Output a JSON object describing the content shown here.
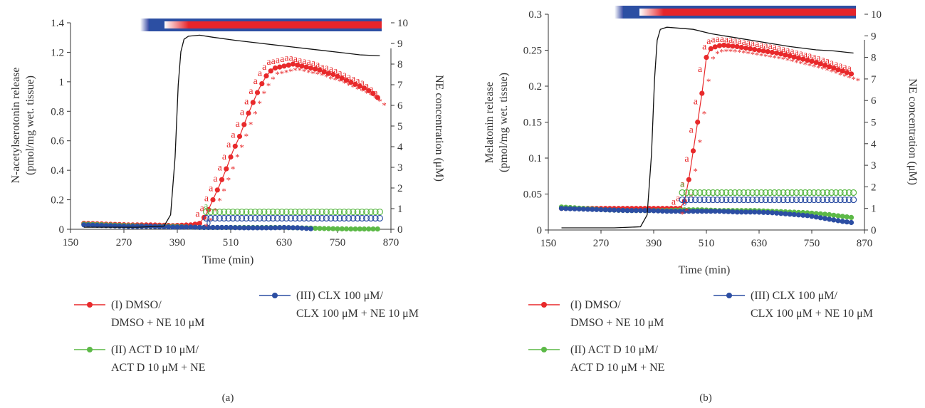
{
  "chart_data": [
    {
      "type": "line",
      "panel_label": "(a)",
      "xlabel": "Time (min)",
      "ylabel_lines": [
        "N-acetylserotonin release",
        "(pmol/mg wet. tissue)"
      ],
      "y2label": "NE concentration (μM)",
      "xlim": [
        150,
        870
      ],
      "xticks": [
        150,
        270,
        390,
        510,
        630,
        750,
        870
      ],
      "ylim": [
        0,
        1.4
      ],
      "yticks": [
        0,
        0.2,
        0.4,
        0.6,
        0.8,
        1,
        1.2,
        1.4
      ],
      "ytick_labels": [
        "0",
        "0.2",
        "0.4",
        "0.6",
        "0.8",
        "1",
        "1.2",
        "1.4"
      ],
      "y2lim": [
        0,
        10
      ],
      "y2ticks": [
        0,
        1,
        2,
        3,
        4,
        5,
        6,
        7,
        8,
        9,
        10
      ],
      "series": [
        {
          "name": "(I) DMSO/ DMSO + NE 10 μM",
          "color": "#e8292b",
          "x": [
            180,
            230,
            280,
            330,
            380,
            420,
            440,
            455,
            470,
            485,
            500,
            515,
            530,
            545,
            560,
            575,
            590,
            605,
            620,
            635,
            650,
            665,
            680,
            695,
            710,
            725,
            740,
            755,
            770,
            785,
            800,
            815,
            830,
            845
          ],
          "y": [
            0.04,
            0.035,
            0.03,
            0.03,
            0.025,
            0.03,
            0.04,
            0.1,
            0.2,
            0.3,
            0.41,
            0.53,
            0.63,
            0.75,
            0.86,
            0.96,
            1.04,
            1.09,
            1.1,
            1.11,
            1.12,
            1.11,
            1.1,
            1.09,
            1.08,
            1.06,
            1.05,
            1.03,
            1.01,
            0.99,
            0.97,
            0.95,
            0.92,
            0.88
          ]
        },
        {
          "name": "(II) ACT D 10 μM/ ACT D 10 μM + NE",
          "color": "#5cb947",
          "x": [
            180,
            230,
            280,
            330,
            380,
            420,
            450,
            480,
            510,
            540,
            570,
            600,
            630,
            660,
            690,
            720,
            750,
            780,
            810,
            845
          ],
          "y": [
            0.035,
            0.03,
            0.025,
            0.02,
            0.02,
            0.015,
            0.012,
            0.012,
            0.012,
            0.012,
            0.012,
            0.012,
            0.012,
            0.01,
            0.008,
            0.005,
            0.003,
            0.002,
            0.002,
            0.002
          ]
        },
        {
          "name": "(III) CLX 100 μM/ CLX 100 μM + NE 10 μM",
          "color": "#2c4ea3",
          "x": [
            180,
            230,
            280,
            330,
            380,
            420,
            450,
            480,
            510,
            540,
            570,
            600,
            630,
            660,
            690
          ],
          "y": [
            0.03,
            0.025,
            0.02,
            0.02,
            0.015,
            0.015,
            0.012,
            0.012,
            0.012,
            0.01,
            0.01,
            0.01,
            0.012,
            0.01,
            0.004
          ]
        },
        {
          "name": "NE concentration",
          "color": "#111111",
          "axis": "right",
          "x": [
            180,
            300,
            360,
            375,
            385,
            392,
            398,
            405,
            415,
            440,
            470,
            520,
            580,
            640,
            700,
            760,
            800,
            845
          ],
          "y": [
            0.1,
            0.1,
            0.15,
            0.7,
            3.5,
            7,
            8.6,
            9.2,
            9.35,
            9.4,
            9.3,
            9.15,
            9,
            8.85,
            8.7,
            8.55,
            8.45,
            8.4
          ]
        }
      ],
      "annotations": {
        "symbols": [
          "a",
          "*",
          "b"
        ]
      }
    },
    {
      "type": "line",
      "panel_label": "(b)",
      "xlabel": "Time (min)",
      "ylabel_lines": [
        "Melatonin release",
        "(pmol/mg wet. tissue)"
      ],
      "y2label": "NE concentration (μM)",
      "xlim": [
        150,
        870
      ],
      "xticks": [
        150,
        270,
        390,
        510,
        630,
        750,
        870
      ],
      "ylim": [
        0,
        0.3
      ],
      "yticks": [
        0,
        0.05,
        0.1,
        0.15,
        0.2,
        0.25,
        0.3
      ],
      "ytick_labels": [
        "0",
        "0.05",
        "0.1",
        "0.15",
        "0.2",
        "0.25",
        "0.3"
      ],
      "y2lim": [
        0,
        10
      ],
      "y2ticks": [
        0,
        1,
        2,
        3,
        4,
        5,
        6,
        7,
        8,
        9,
        10
      ],
      "series": [
        {
          "name": "(I) DMSO/ DMSO + NE 10 μM",
          "color": "#e8292b",
          "x": [
            180,
            230,
            280,
            330,
            380,
            420,
            450,
            460,
            470,
            480,
            490,
            500,
            510,
            520,
            535,
            550,
            565,
            580,
            600,
            620,
            640,
            660,
            680,
            700,
            720,
            740,
            760,
            780,
            800,
            820,
            845
          ],
          "y": [
            0.03,
            0.03,
            0.03,
            0.03,
            0.03,
            0.03,
            0.03,
            0.04,
            0.07,
            0.11,
            0.15,
            0.19,
            0.24,
            0.252,
            0.256,
            0.257,
            0.256,
            0.255,
            0.253,
            0.251,
            0.249,
            0.247,
            0.245,
            0.242,
            0.239,
            0.236,
            0.233,
            0.229,
            0.225,
            0.221,
            0.216
          ]
        },
        {
          "name": "(II) ACT D 10 μM/ ACT D 10 μM + NE",
          "color": "#5cb947",
          "x": [
            180,
            230,
            280,
            330,
            380,
            420,
            460,
            500,
            540,
            580,
            620,
            660,
            700,
            740,
            780,
            820,
            845
          ],
          "y": [
            0.032,
            0.03,
            0.028,
            0.027,
            0.027,
            0.027,
            0.028,
            0.028,
            0.027,
            0.027,
            0.027,
            0.026,
            0.025,
            0.024,
            0.022,
            0.019,
            0.017
          ]
        },
        {
          "name": "(III) CLX 100 μM/ CLX 100 μM + NE 10 μM",
          "color": "#2c4ea3",
          "x": [
            180,
            230,
            280,
            330,
            380,
            420,
            460,
            500,
            540,
            580,
            620,
            660,
            700,
            740,
            780,
            820,
            845
          ],
          "y": [
            0.03,
            0.029,
            0.028,
            0.027,
            0.027,
            0.026,
            0.026,
            0.026,
            0.026,
            0.025,
            0.025,
            0.024,
            0.022,
            0.02,
            0.016,
            0.012,
            0.01
          ]
        },
        {
          "name": "NE concentration",
          "color": "#111111",
          "axis": "right",
          "x": [
            180,
            300,
            360,
            375,
            385,
            392,
            398,
            405,
            420,
            450,
            480,
            520,
            580,
            640,
            700,
            760,
            800,
            845
          ],
          "y": [
            0.1,
            0.1,
            0.15,
            0.7,
            3.5,
            7,
            8.8,
            9.3,
            9.4,
            9.35,
            9.3,
            9.1,
            8.9,
            8.7,
            8.5,
            8.35,
            8.3,
            8.2
          ]
        }
      ],
      "annotations": {
        "symbols": [
          "a",
          "*",
          "b"
        ]
      }
    }
  ],
  "legend": [
    {
      "id": "I",
      "line1": "(I) DMSO/",
      "line2": "DMSO + NE 10 μM",
      "color": "#e8292b"
    },
    {
      "id": "II",
      "line1": "(II) ACT D 10 μM/",
      "line2": "ACT D 10 μM + NE",
      "color": "#5cb947"
    },
    {
      "id": "III",
      "line1": "(III) CLX 100 μM/",
      "line2": "CLX 100 μM + NE 10 μM",
      "color": "#2c4ea3"
    }
  ],
  "colors": {
    "bar_blue": "#2c4fa3",
    "bar_red": "#e6252b",
    "axis": "#333333"
  }
}
